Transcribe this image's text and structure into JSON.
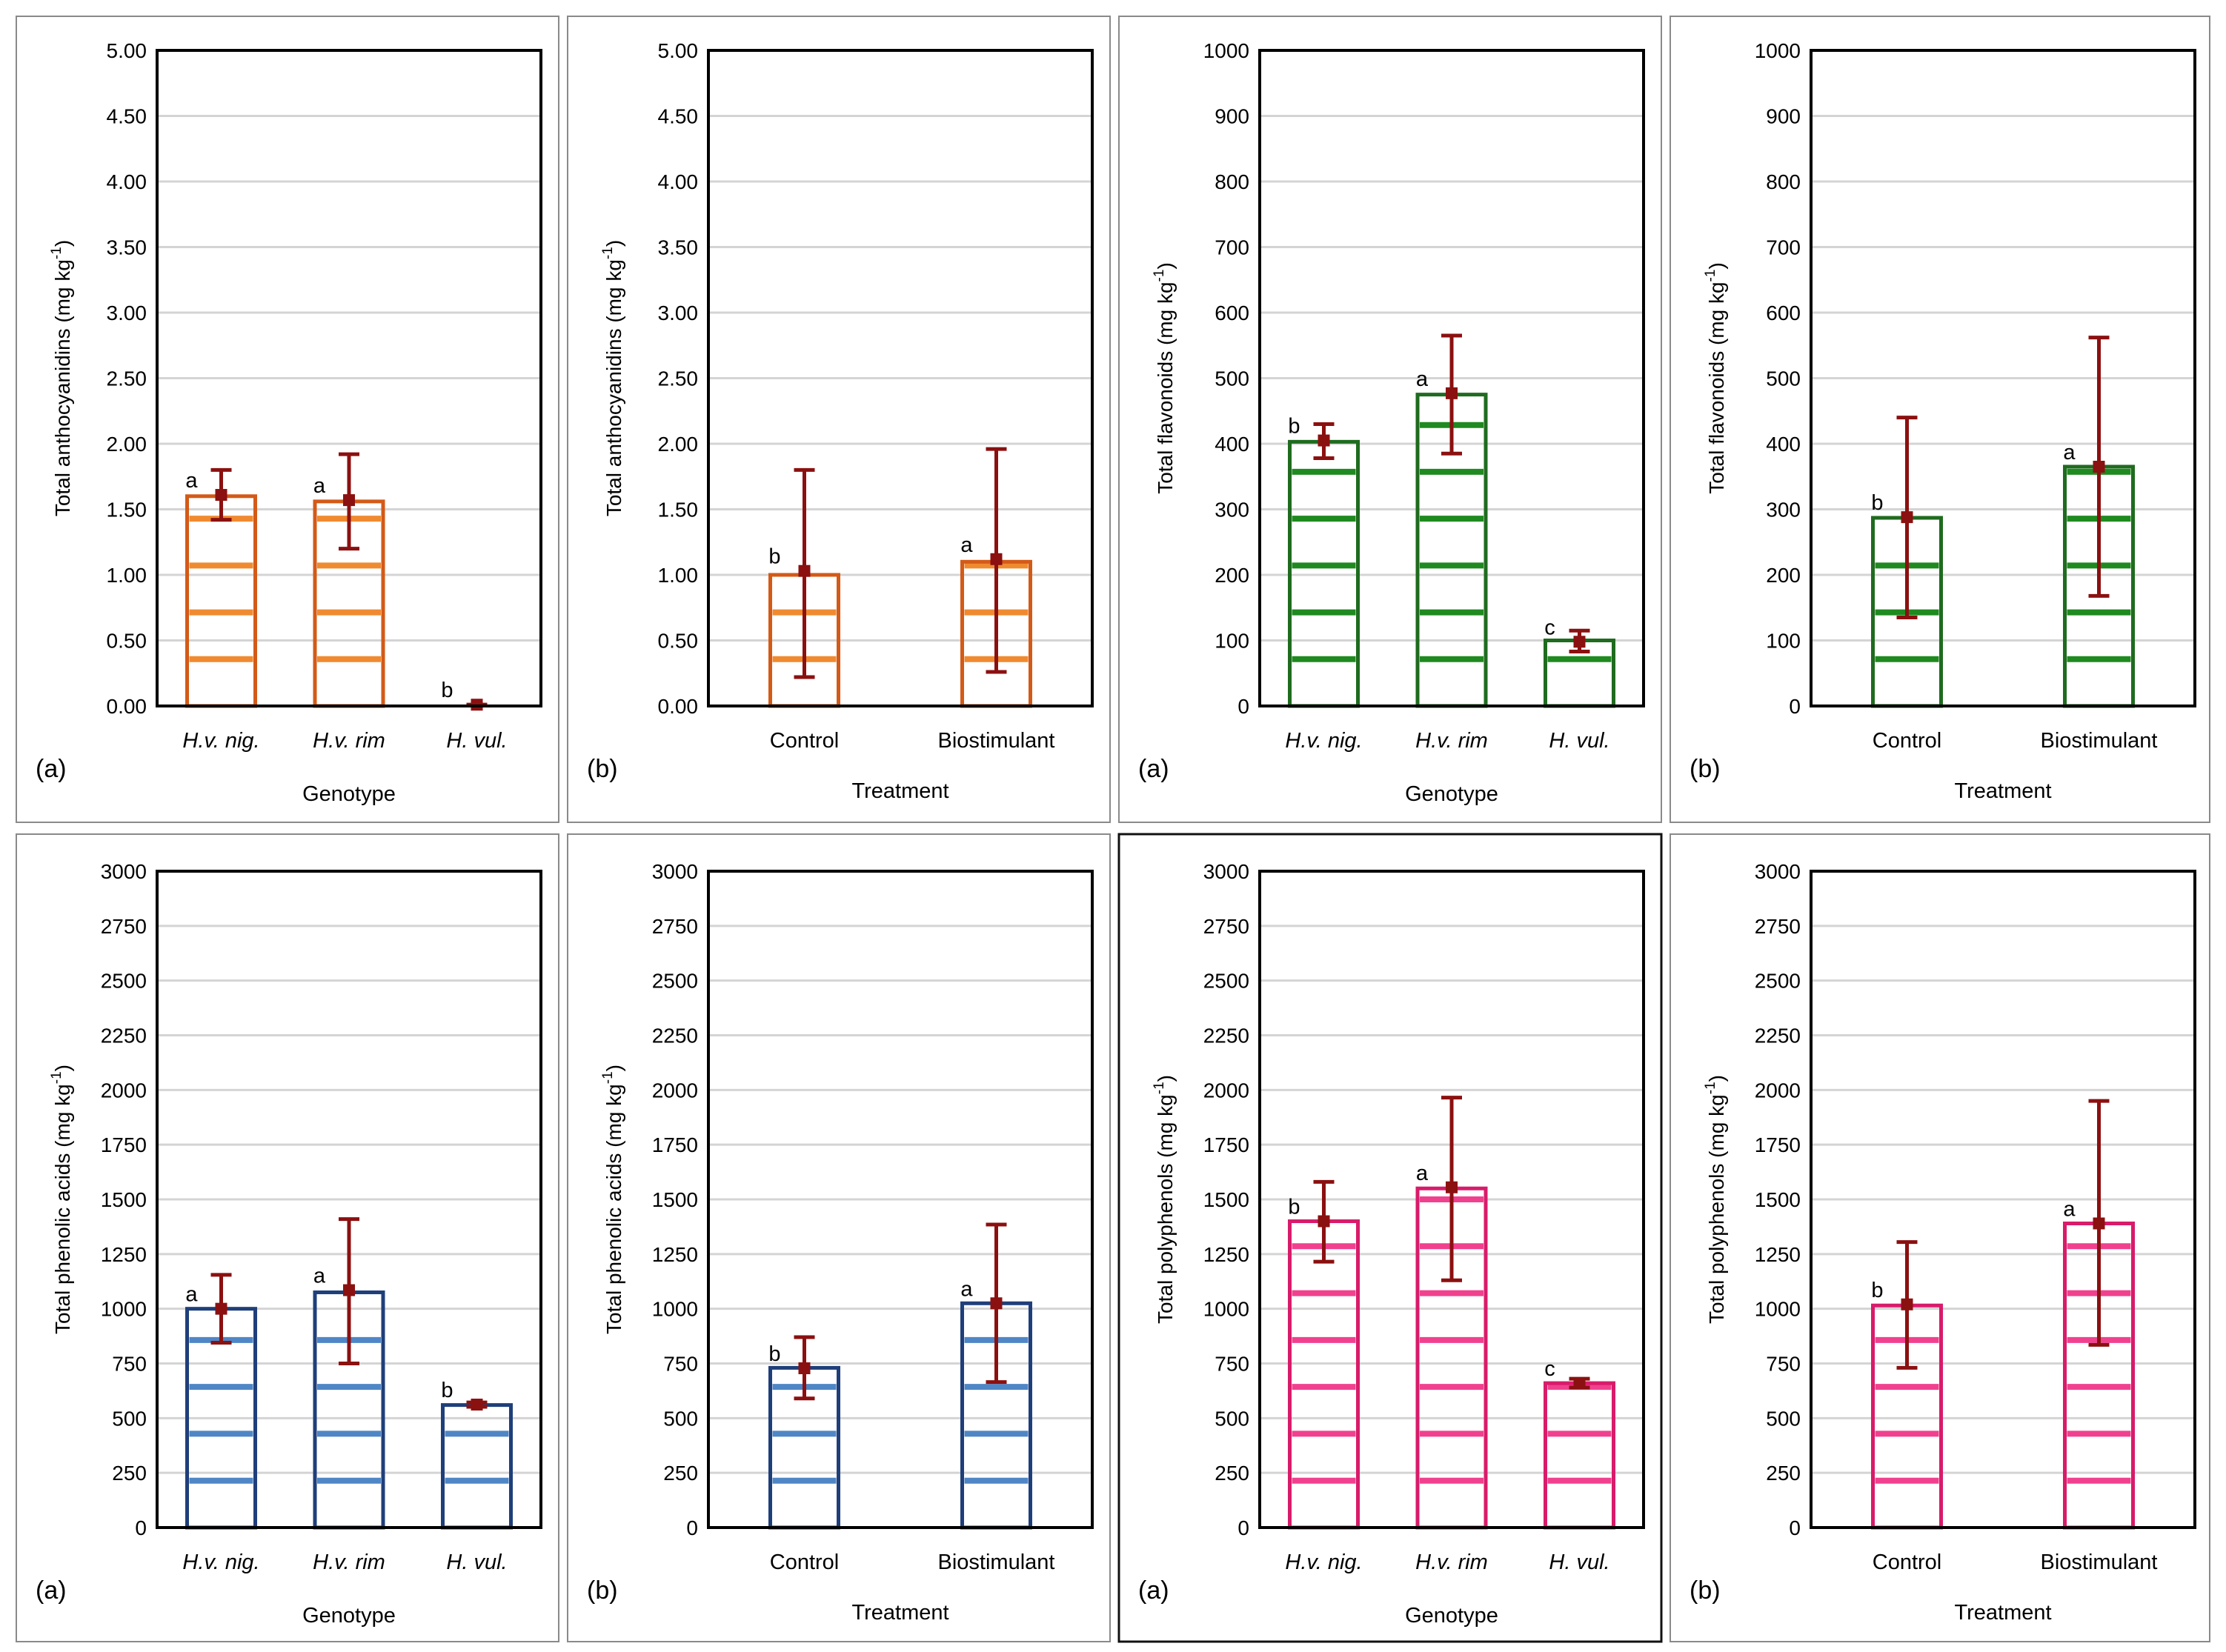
{
  "colors": {
    "anthocyanidins": "#d35a17",
    "anthocyanidins_inner": "#f08a30",
    "flavonoids": "#1f6b1f",
    "flavonoids_inner": "#1f8a1f",
    "phenolic": "#1f3f7a",
    "phenolic_inner": "#4f86c6",
    "polyphenols": "#d81b6a",
    "polyphenols_inner": "#f0418f",
    "error": "#8b1010"
  },
  "chart_data": [
    {
      "type": "bar",
      "panel": "(a)",
      "title": "",
      "ylabel": "Total anthocyanidins (mg kg",
      "ylabel_sup": "-1",
      "ylabel_close": ")",
      "xlabel": "Genotype",
      "italic_categories": true,
      "categories": [
        "H.v. nig.",
        "H.v. rim",
        "H. vul."
      ],
      "values": [
        1.6,
        1.56,
        0.0
      ],
      "means": [
        1.61,
        1.57,
        0.01
      ],
      "err_low": [
        1.42,
        1.2,
        0.01
      ],
      "err_high": [
        1.8,
        1.92,
        0.01
      ],
      "letters": [
        "a",
        "a",
        "b"
      ],
      "ylim": [
        0,
        5
      ],
      "yticks": [
        "0.00",
        "0.50",
        "1.00",
        "1.50",
        "2.00",
        "2.50",
        "3.00",
        "3.50",
        "4.00",
        "4.50",
        "5.00"
      ],
      "color_key": "anthocyanidins"
    },
    {
      "type": "bar",
      "panel": "(b)",
      "title": "",
      "ylabel": "Total anthocyanidins (mg kg",
      "ylabel_sup": "-1",
      "ylabel_close": ")",
      "xlabel": "Treatment",
      "italic_categories": false,
      "categories": [
        "Control",
        "Biostimulant"
      ],
      "values": [
        1.0,
        1.1
      ],
      "means": [
        1.03,
        1.12
      ],
      "err_low": [
        0.22,
        0.26
      ],
      "err_high": [
        1.8,
        1.96
      ],
      "letters": [
        "b",
        "a"
      ],
      "ylim": [
        0,
        5
      ],
      "yticks": [
        "0.00",
        "0.50",
        "1.00",
        "1.50",
        "2.00",
        "2.50",
        "3.00",
        "3.50",
        "4.00",
        "4.50",
        "5.00"
      ],
      "color_key": "anthocyanidins"
    },
    {
      "type": "bar",
      "panel": "(a)",
      "title": "",
      "ylabel": "Total flavonoids (mg kg",
      "ylabel_sup": "-1",
      "ylabel_close": ")",
      "xlabel": "Genotype",
      "italic_categories": true,
      "categories": [
        "H.v. nig.",
        "H.v. rim",
        "H. vul."
      ],
      "values": [
        403,
        475,
        100
      ],
      "means": [
        405,
        477,
        98
      ],
      "err_low": [
        378,
        385,
        83
      ],
      "err_high": [
        430,
        565,
        115
      ],
      "letters": [
        "b",
        "a",
        "c"
      ],
      "ylim": [
        0,
        1000
      ],
      "yticks": [
        "0",
        "100",
        "200",
        "300",
        "400",
        "500",
        "600",
        "700",
        "800",
        "900",
        "1000"
      ],
      "color_key": "flavonoids"
    },
    {
      "type": "bar",
      "panel": "(b)",
      "title": "",
      "ylabel": "Total flavonoids (mg kg",
      "ylabel_sup": "-1",
      "ylabel_close": ")",
      "xlabel": "Treatment",
      "italic_categories": false,
      "categories": [
        "Control",
        "Biostimulant"
      ],
      "values": [
        287,
        365
      ],
      "means": [
        288,
        365
      ],
      "err_low": [
        135,
        168
      ],
      "err_high": [
        440,
        562
      ],
      "letters": [
        "b",
        "a"
      ],
      "ylim": [
        0,
        1000
      ],
      "yticks": [
        "0",
        "100",
        "200",
        "300",
        "400",
        "500",
        "600",
        "700",
        "800",
        "900",
        "1000"
      ],
      "color_key": "flavonoids"
    },
    {
      "type": "bar",
      "panel": "(a)",
      "title": "",
      "ylabel": "Total phenolic acids (mg kg",
      "ylabel_sup": "-1",
      "ylabel_close": ")",
      "xlabel": "Genotype",
      "italic_categories": true,
      "categories": [
        "H.v. nig.",
        "H.v. rim",
        "H. vul."
      ],
      "values": [
        1000,
        1075,
        560
      ],
      "means": [
        1000,
        1085,
        562
      ],
      "err_low": [
        845,
        750,
        552
      ],
      "err_high": [
        1155,
        1410,
        572
      ],
      "letters": [
        "a",
        "a",
        "b"
      ],
      "ylim": [
        0,
        3000
      ],
      "yticks": [
        "0",
        "250",
        "500",
        "750",
        "1000",
        "1250",
        "1500",
        "1750",
        "2000",
        "2250",
        "2500",
        "2750",
        "3000"
      ],
      "color_key": "phenolic"
    },
    {
      "type": "bar",
      "panel": "(b)",
      "title": "",
      "ylabel": "Total phenolic acids (mg kg",
      "ylabel_sup": "-1",
      "ylabel_close": ")",
      "xlabel": "Treatment",
      "italic_categories": false,
      "categories": [
        "Control",
        "Biostimulant"
      ],
      "values": [
        730,
        1025
      ],
      "means": [
        728,
        1025
      ],
      "err_low": [
        590,
        665
      ],
      "err_high": [
        870,
        1385
      ],
      "letters": [
        "b",
        "a"
      ],
      "ylim": [
        0,
        3000
      ],
      "yticks": [
        "0",
        "250",
        "500",
        "750",
        "1000",
        "1250",
        "1500",
        "1750",
        "2000",
        "2250",
        "2500",
        "2750",
        "3000"
      ],
      "color_key": "phenolic"
    },
    {
      "type": "bar",
      "panel": "(a)",
      "title": "",
      "ylabel": "Total polyphenols (mg kg",
      "ylabel_sup": "-1",
      "ylabel_close": ")",
      "xlabel": "Genotype",
      "italic_categories": true,
      "categories": [
        "H.v. nig.",
        "H.v. rim",
        "H. vul."
      ],
      "values": [
        1400,
        1550,
        660
      ],
      "means": [
        1400,
        1555,
        660
      ],
      "err_low": [
        1215,
        1130,
        640
      ],
      "err_high": [
        1580,
        1965,
        680
      ],
      "letters": [
        "b",
        "a",
        "c"
      ],
      "ylim": [
        0,
        3000
      ],
      "yticks": [
        "0",
        "250",
        "500",
        "750",
        "1000",
        "1250",
        "1500",
        "1750",
        "2000",
        "2250",
        "2500",
        "2750",
        "3000"
      ],
      "color_key": "polyphenols"
    },
    {
      "type": "bar",
      "panel": "(b)",
      "title": "",
      "ylabel": "Total polyphenols (mg kg",
      "ylabel_sup": "-1",
      "ylabel_close": ")",
      "xlabel": "Treatment",
      "italic_categories": false,
      "categories": [
        "Control",
        "Biostimulant"
      ],
      "values": [
        1015,
        1390
      ],
      "means": [
        1020,
        1390
      ],
      "err_low": [
        730,
        835
      ],
      "err_high": [
        1305,
        1950
      ],
      "letters": [
        "b",
        "a"
      ],
      "ylim": [
        0,
        3000
      ],
      "yticks": [
        "0",
        "250",
        "500",
        "750",
        "1000",
        "1250",
        "1500",
        "1750",
        "2000",
        "2250",
        "2500",
        "2750",
        "3000"
      ],
      "color_key": "polyphenols"
    }
  ]
}
